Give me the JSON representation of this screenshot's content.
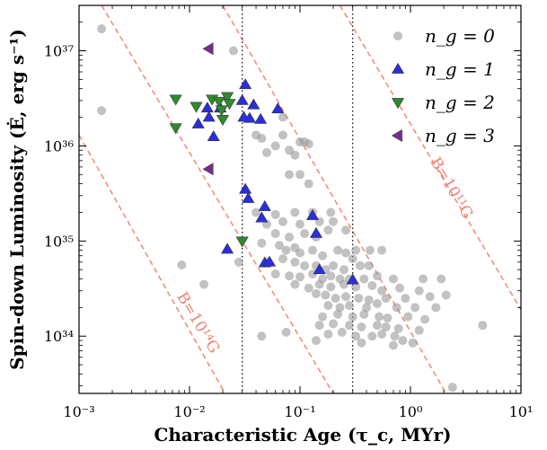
{
  "chart_data": {
    "type": "scatter",
    "xlabel": "Characteristic Age (τ_c, MYr)",
    "ylabel": "Spin-down Luminosity (Ė, erg s⁻¹)",
    "xscale": "log",
    "yscale": "log",
    "xlim": [
      0.001,
      10
    ],
    "ylim": [
      2.5e+33,
      3e+37
    ],
    "x_ticks": [
      {
        "value": 0.001,
        "label": "10⁻³"
      },
      {
        "value": 0.01,
        "label": "10⁻²"
      },
      {
        "value": 0.1,
        "label": "10⁻¹"
      },
      {
        "value": 1,
        "label": "10⁰"
      },
      {
        "value": 10,
        "label": "10¹"
      }
    ],
    "y_ticks": [
      {
        "value": 1e+34,
        "label": "10³⁴"
      },
      {
        "value": 1e+35,
        "label": "10³⁵"
      },
      {
        "value": 1e+36,
        "label": "10³⁶"
      },
      {
        "value": 1e+37,
        "label": "10³⁷"
      }
    ],
    "vertical_lines": [
      0.03,
      0.3
    ],
    "b_field_lines": [
      {
        "label": "",
        "points": [
          [
            0.001,
            1.3e+36
          ],
          [
            0.021,
            2.5e+33
          ]
        ]
      },
      {
        "label": "B=10¹⁴G",
        "points": [
          [
            0.0016,
            3e+37
          ],
          [
            0.2,
            2.5e+33
          ]
        ]
      },
      {
        "label": "",
        "points": [
          [
            0.02,
            3e+37
          ],
          [
            2.1,
            2.5e+33
          ]
        ]
      },
      {
        "label": "B=10¹¹G",
        "points": [
          [
            0.23,
            3e+37
          ],
          [
            10,
            1.9e+34
          ]
        ]
      }
    ],
    "legend_position": "top-right",
    "series": [
      {
        "name": "n_g = 0",
        "marker": "circle",
        "color": "#999999",
        "points": [
          [
            0.0016,
            1.7e+37
          ],
          [
            0.0016,
            2.35e+36
          ],
          [
            0.025,
            1e+37
          ],
          [
            0.0085,
            5.6e+34
          ],
          [
            0.0135,
            3.5e+34
          ],
          [
            0.028,
            6e+34
          ],
          [
            0.04,
            1.3e+36
          ],
          [
            0.045,
            1.2e+36
          ],
          [
            0.05,
            8.5e+35
          ],
          [
            0.06,
            1e+36
          ],
          [
            0.07,
            1.3e+36
          ],
          [
            0.08,
            9e+35
          ],
          [
            0.09,
            8e+35
          ],
          [
            0.1,
            1.1e+36
          ],
          [
            0.11,
            1.1e+36
          ],
          [
            0.12,
            1.05e+36
          ],
          [
            0.07,
            2e+36
          ],
          [
            0.08,
            5e+35
          ],
          [
            0.1,
            5e+35
          ],
          [
            0.12,
            4e+35
          ],
          [
            0.04,
            2e+35
          ],
          [
            0.06,
            1.9e+35
          ],
          [
            0.09,
            2e+35
          ],
          [
            0.13,
            2e+35
          ],
          [
            0.19,
            2e+35
          ],
          [
            0.05,
            1.5e+35
          ],
          [
            0.07,
            1.6e+35
          ],
          [
            0.1,
            1.5e+35
          ],
          [
            0.15,
            1.6e+35
          ],
          [
            0.2,
            1.6e+35
          ],
          [
            0.06,
            1.2e+35
          ],
          [
            0.08,
            1.1e+35
          ],
          [
            0.11,
            1.2e+35
          ],
          [
            0.14,
            1.1e+35
          ],
          [
            0.18,
            1.3e+35
          ],
          [
            0.26,
            1.3e+35
          ],
          [
            0.045,
            9.5e+34
          ],
          [
            0.065,
            9e+34
          ],
          [
            0.075,
            8e+34
          ],
          [
            0.09,
            8.5e+34
          ],
          [
            0.1,
            7.5e+34
          ],
          [
            0.13,
            8e+34
          ],
          [
            0.16,
            7e+34
          ],
          [
            0.22,
            8e+34
          ],
          [
            0.26,
            7.5e+34
          ],
          [
            0.32,
            8e+34
          ],
          [
            0.43,
            8e+34
          ],
          [
            0.55,
            8e+34
          ],
          [
            0.05,
            6e+34
          ],
          [
            0.07,
            6.5e+34
          ],
          [
            0.09,
            6e+34
          ],
          [
            0.11,
            5.5e+34
          ],
          [
            0.14,
            5.5e+34
          ],
          [
            0.17,
            5e+34
          ],
          [
            0.2,
            5.5e+34
          ],
          [
            0.25,
            5e+34
          ],
          [
            0.3,
            6.5e+34
          ],
          [
            0.35,
            5.5e+34
          ],
          [
            0.42,
            5.5e+34
          ],
          [
            0.06,
            4.5e+34
          ],
          [
            0.08,
            4.3e+34
          ],
          [
            0.1,
            4.2e+34
          ],
          [
            0.13,
            4.5e+34
          ],
          [
            0.16,
            4e+34
          ],
          [
            0.19,
            4.3e+34
          ],
          [
            0.23,
            4e+34
          ],
          [
            0.28,
            4e+34
          ],
          [
            0.38,
            4e+34
          ],
          [
            0.5,
            4.3e+34
          ],
          [
            0.7,
            4e+34
          ],
          [
            1.3,
            4e+34
          ],
          [
            1.9,
            4e+34
          ],
          [
            0.09,
            3.5e+34
          ],
          [
            0.12,
            3.2e+34
          ],
          [
            0.15,
            3.5e+34
          ],
          [
            0.19,
            3.3e+34
          ],
          [
            0.25,
            3.5e+34
          ],
          [
            0.32,
            3.3e+34
          ],
          [
            0.45,
            3.4e+34
          ],
          [
            0.55,
            3e+34
          ],
          [
            0.8,
            3.2e+34
          ],
          [
            1.2,
            3e+34
          ],
          [
            0.14,
            2.8e+34
          ],
          [
            0.17,
            2.7e+34
          ],
          [
            0.21,
            2.5e+34
          ],
          [
            0.26,
            2.6e+34
          ],
          [
            0.34,
            2.5e+34
          ],
          [
            0.42,
            2.4e+34
          ],
          [
            0.6,
            2.5e+34
          ],
          [
            0.9,
            2.5e+34
          ],
          [
            1.5,
            2.6e+34
          ],
          [
            2.1,
            2.7e+34
          ],
          [
            0.18,
            2.1e+34
          ],
          [
            0.23,
            2e+34
          ],
          [
            0.28,
            2.1e+34
          ],
          [
            0.4,
            2e+34
          ],
          [
            0.5,
            2.2e+34
          ],
          [
            0.75,
            2e+34
          ],
          [
            1.1,
            2e+34
          ],
          [
            1.7,
            2e+34
          ],
          [
            0.16,
            1.6e+34
          ],
          [
            0.22,
            1.7e+34
          ],
          [
            0.3,
            1.6e+34
          ],
          [
            0.38,
            1.7e+34
          ],
          [
            0.52,
            1.6e+34
          ],
          [
            0.62,
            1.55e+34
          ],
          [
            0.95,
            1.6e+34
          ],
          [
            1.35,
            1.5e+34
          ],
          [
            0.15,
            1.3e+34
          ],
          [
            0.2,
            1.35e+34
          ],
          [
            0.28,
            1.3e+34
          ],
          [
            0.36,
            1.25e+34
          ],
          [
            0.5,
            1.3e+34
          ],
          [
            0.6,
            1.25e+34
          ],
          [
            0.78,
            1.2e+34
          ],
          [
            1.2,
            1.15e+34
          ],
          [
            0.18,
            1.05e+34
          ],
          [
            0.24,
            1.1e+34
          ],
          [
            0.32,
            1e+34
          ],
          [
            0.45,
            1e+34
          ],
          [
            0.55,
            1.05e+34
          ],
          [
            0.72,
            1e+34
          ],
          [
            0.85,
            9e+33
          ],
          [
            1.05,
            8.5e+33
          ],
          [
            0.045,
            1e+34
          ],
          [
            0.075,
            1.1e+34
          ],
          [
            0.14,
            9e+33
          ],
          [
            0.36,
            8.5e+33
          ],
          [
            0.7,
            8e+33
          ],
          [
            4.5,
            1.3e+34
          ],
          [
            2.4,
            2.9e+33
          ]
        ]
      },
      {
        "name": "n_g = 1",
        "marker": "triangle-up",
        "color": "#2a2ee0",
        "points": [
          [
            0.0145,
            2.5e+36
          ],
          [
            0.015,
            2e+36
          ],
          [
            0.019,
            2.5e+36
          ],
          [
            0.012,
            1.7e+36
          ],
          [
            0.0165,
            1.25e+36
          ],
          [
            0.032,
            4.4e+36
          ],
          [
            0.03,
            3e+36
          ],
          [
            0.031,
            2e+36
          ],
          [
            0.035,
            1.95e+36
          ],
          [
            0.038,
            2.7e+36
          ],
          [
            0.044,
            1.9e+36
          ],
          [
            0.063,
            2.45e+36
          ],
          [
            0.032,
            3.5e+35
          ],
          [
            0.034,
            2.8e+35
          ],
          [
            0.048,
            2.3e+35
          ],
          [
            0.045,
            1.75e+35
          ],
          [
            0.13,
            1.85e+35
          ],
          [
            0.022,
            8.2e+34
          ],
          [
            0.048,
            5.9e+34
          ],
          [
            0.053,
            6e+34
          ],
          [
            0.14,
            1.2e+35
          ],
          [
            0.15,
            5e+34
          ],
          [
            0.3,
            3.9e+34
          ]
        ]
      },
      {
        "name": "n_g = 2",
        "marker": "triangle-down",
        "color": "#2e8b2e",
        "points": [
          [
            0.0075,
            3.1e+36
          ],
          [
            0.0075,
            1.55e+36
          ],
          [
            0.0115,
            2.6e+36
          ],
          [
            0.016,
            3.1e+36
          ],
          [
            0.0185,
            2.95e+36
          ],
          [
            0.0195,
            2.4e+36
          ],
          [
            0.022,
            3.3e+36
          ],
          [
            0.023,
            2.8e+36
          ],
          [
            0.02,
            1.9e+36
          ],
          [
            0.03,
            1e+35
          ]
        ]
      },
      {
        "name": "n_g = 3",
        "marker": "triangle-left",
        "color": "#7b2c91",
        "points": [
          [
            0.015,
            1.05e+37
          ],
          [
            0.015,
            5.7e+35
          ]
        ]
      }
    ]
  }
}
